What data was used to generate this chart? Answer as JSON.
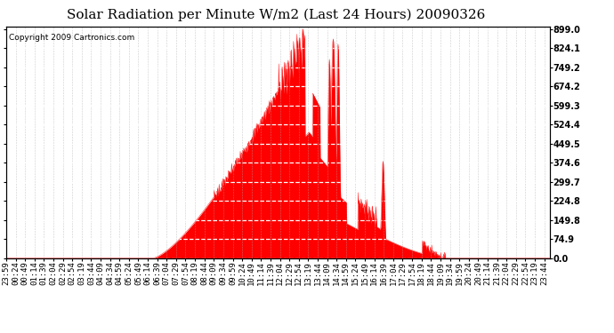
{
  "title": "Solar Radiation per Minute W/m2 (Last 24 Hours) 20090326",
  "copyright": "Copyright 2009 Cartronics.com",
  "ytick_labels": [
    0.0,
    74.9,
    149.8,
    224.8,
    299.7,
    374.6,
    449.5,
    524.4,
    599.3,
    674.2,
    749.2,
    824.1,
    899.0
  ],
  "ymax": 899.0,
  "ymin": 0.0,
  "fill_color": "#FF0000",
  "line_color": "#FF0000",
  "background_color": "#FFFFFF",
  "grid_color": "#AAAAAA",
  "border_color": "#000000",
  "title_fontsize": 11,
  "copyright_fontsize": 6.5,
  "tick_fontsize": 6.5,
  "total_minutes": 1440
}
